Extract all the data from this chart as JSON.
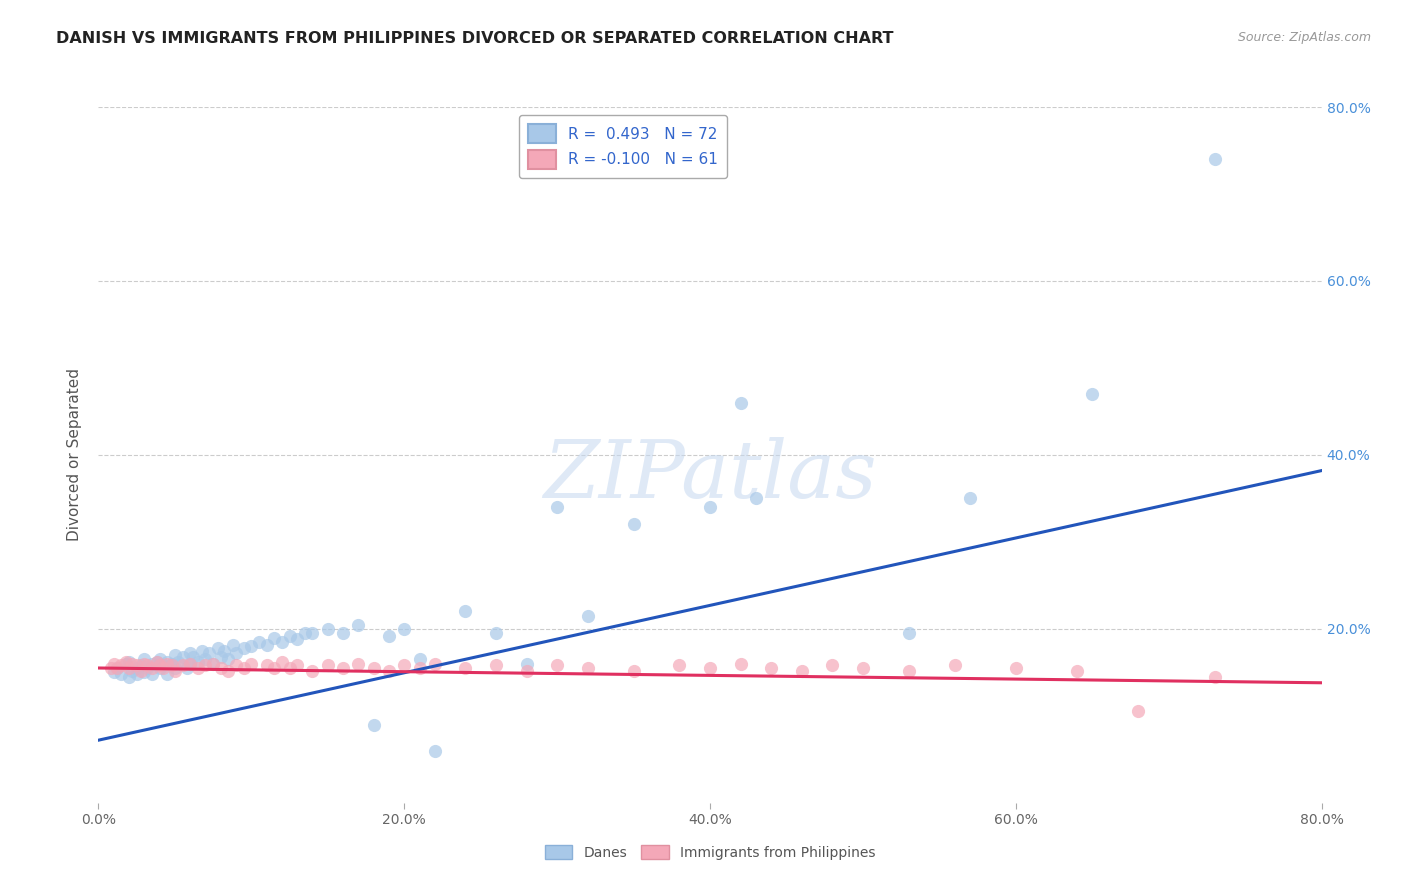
{
  "title": "DANISH VS IMMIGRANTS FROM PHILIPPINES DIVORCED OR SEPARATED CORRELATION CHART",
  "source": "Source: ZipAtlas.com",
  "ylabel": "Divorced or Separated",
  "xlim": [
    0.0,
    0.8
  ],
  "ylim": [
    0.0,
    0.8
  ],
  "xtick_vals": [
    0.0,
    0.2,
    0.4,
    0.6,
    0.8
  ],
  "xtick_labels": [
    "0.0%",
    "20.0%",
    "40.0%",
    "60.0%",
    "80.0%"
  ],
  "ytick_vals": [
    0.2,
    0.4,
    0.6,
    0.8
  ],
  "ytick_labels": [
    "20.0%",
    "40.0%",
    "60.0%",
    "80.0%"
  ],
  "danes_color": "#a8c8e8",
  "philippines_color": "#f4a8b8",
  "danes_line_color": "#2255bb",
  "philippines_line_color": "#e03060",
  "grid_color": "#cccccc",
  "background_color": "#ffffff",
  "danes_line_x": [
    0.0,
    0.8
  ],
  "danes_line_y": [
    0.072,
    0.382
  ],
  "phil_line_x": [
    0.0,
    0.8
  ],
  "phil_line_y": [
    0.155,
    0.138
  ],
  "danes_x": [
    0.01,
    0.012,
    0.015,
    0.018,
    0.02,
    0.02,
    0.022,
    0.025,
    0.025,
    0.028,
    0.03,
    0.03,
    0.032,
    0.035,
    0.035,
    0.038,
    0.04,
    0.04,
    0.042,
    0.045,
    0.045,
    0.048,
    0.05,
    0.05,
    0.052,
    0.055,
    0.058,
    0.06,
    0.06,
    0.062,
    0.065,
    0.068,
    0.07,
    0.072,
    0.075,
    0.078,
    0.08,
    0.082,
    0.085,
    0.088,
    0.09,
    0.095,
    0.1,
    0.105,
    0.11,
    0.115,
    0.12,
    0.125,
    0.13,
    0.135,
    0.14,
    0.15,
    0.16,
    0.17,
    0.18,
    0.19,
    0.2,
    0.21,
    0.22,
    0.24,
    0.26,
    0.28,
    0.3,
    0.32,
    0.35,
    0.4,
    0.42,
    0.43,
    0.53,
    0.57,
    0.65,
    0.73
  ],
  "danes_y": [
    0.15,
    0.155,
    0.148,
    0.16,
    0.145,
    0.162,
    0.152,
    0.155,
    0.148,
    0.158,
    0.15,
    0.165,
    0.155,
    0.16,
    0.148,
    0.162,
    0.155,
    0.165,
    0.158,
    0.162,
    0.148,
    0.16,
    0.155,
    0.17,
    0.162,
    0.168,
    0.155,
    0.172,
    0.16,
    0.168,
    0.162,
    0.175,
    0.165,
    0.172,
    0.16,
    0.178,
    0.168,
    0.175,
    0.165,
    0.182,
    0.172,
    0.178,
    0.18,
    0.185,
    0.182,
    0.19,
    0.185,
    0.192,
    0.188,
    0.195,
    0.195,
    0.2,
    0.195,
    0.205,
    0.09,
    0.192,
    0.2,
    0.165,
    0.06,
    0.22,
    0.195,
    0.16,
    0.34,
    0.215,
    0.32,
    0.34,
    0.46,
    0.35,
    0.195,
    0.35,
    0.47,
    0.74
  ],
  "phil_x": [
    0.008,
    0.01,
    0.012,
    0.015,
    0.018,
    0.02,
    0.022,
    0.025,
    0.028,
    0.03,
    0.032,
    0.035,
    0.038,
    0.04,
    0.042,
    0.045,
    0.048,
    0.05,
    0.055,
    0.06,
    0.065,
    0.07,
    0.075,
    0.08,
    0.085,
    0.09,
    0.095,
    0.1,
    0.11,
    0.115,
    0.12,
    0.125,
    0.13,
    0.14,
    0.15,
    0.16,
    0.17,
    0.18,
    0.19,
    0.2,
    0.21,
    0.22,
    0.24,
    0.26,
    0.28,
    0.3,
    0.32,
    0.35,
    0.38,
    0.4,
    0.42,
    0.44,
    0.46,
    0.48,
    0.5,
    0.53,
    0.56,
    0.6,
    0.64,
    0.68,
    0.73
  ],
  "phil_y": [
    0.155,
    0.16,
    0.155,
    0.158,
    0.162,
    0.155,
    0.16,
    0.158,
    0.152,
    0.16,
    0.158,
    0.155,
    0.162,
    0.158,
    0.155,
    0.16,
    0.158,
    0.152,
    0.158,
    0.16,
    0.155,
    0.158,
    0.16,
    0.155,
    0.152,
    0.158,
    0.155,
    0.16,
    0.158,
    0.155,
    0.162,
    0.155,
    0.158,
    0.152,
    0.158,
    0.155,
    0.16,
    0.155,
    0.152,
    0.158,
    0.155,
    0.16,
    0.155,
    0.158,
    0.152,
    0.158,
    0.155,
    0.152,
    0.158,
    0.155,
    0.16,
    0.155,
    0.152,
    0.158,
    0.155,
    0.152,
    0.158,
    0.155,
    0.152,
    0.105,
    0.145
  ]
}
